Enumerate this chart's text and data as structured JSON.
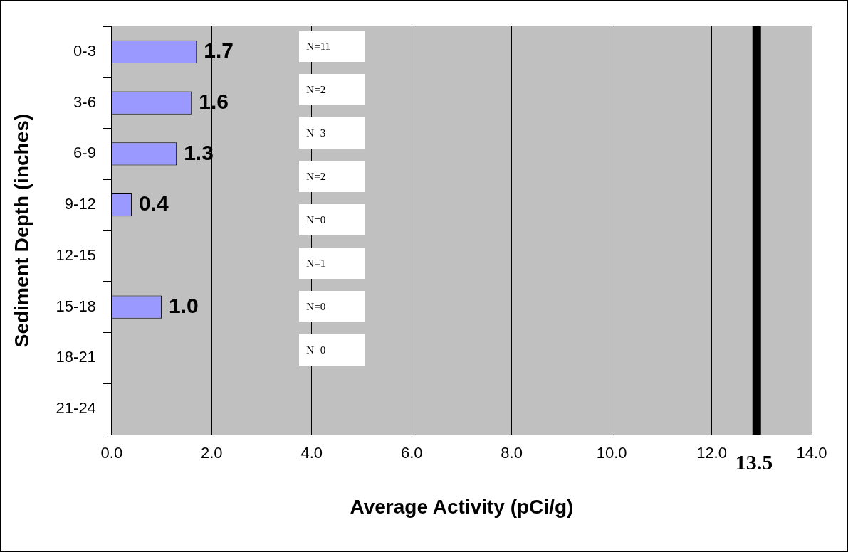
{
  "chart_data": {
    "type": "bar",
    "orientation": "horizontal",
    "xlabel": "Average Activity (pCi/g)",
    "ylabel": "Sediment Depth (inches)",
    "categories": [
      "0-3",
      "3-6",
      "6-9",
      "9-12",
      "12-15",
      "15-18",
      "18-21",
      "21-24"
    ],
    "values": [
      1.7,
      1.6,
      1.3,
      0.4,
      null,
      1.0,
      null,
      null
    ],
    "color": "#9999ff",
    "value_labels": [
      "1.7",
      "1.6",
      "1.3",
      "0.4",
      null,
      "1.0",
      null,
      null
    ],
    "xlim": [
      0,
      14
    ],
    "xticks": [
      {
        "value": 0,
        "label": "0.0"
      },
      {
        "value": 2,
        "label": "2.0"
      },
      {
        "value": 4,
        "label": "4.0"
      },
      {
        "value": 6,
        "label": "6.0"
      },
      {
        "value": 8,
        "label": "8.0"
      },
      {
        "value": 10,
        "label": "10.0"
      },
      {
        "value": 12,
        "label": "12.0"
      },
      {
        "value": 14,
        "label": "14.0"
      }
    ],
    "grid": "x",
    "legend": false,
    "ref_lines": [
      {
        "axis": "x",
        "value": 12.9,
        "color": "#000000"
      }
    ],
    "annotations": [
      "N=11",
      "N=2",
      "N=3",
      "N=2",
      "N=0",
      "N=1",
      "N=0",
      "N=0",
      "13.5"
    ]
  }
}
